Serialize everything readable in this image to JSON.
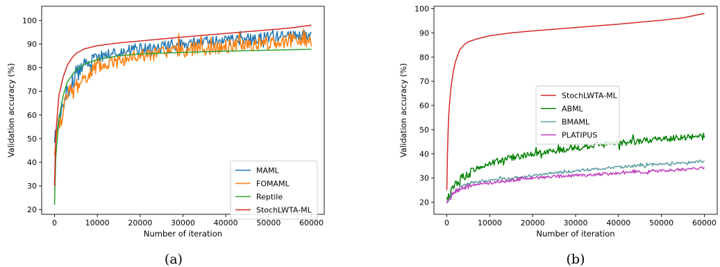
{
  "charts": [
    {
      "caption": "(a)",
      "chart_data": {
        "type": "line",
        "xlabel": "Number of iteration",
        "ylabel": "Validation accuracy (%)",
        "xlim": [
          -3000,
          63000
        ],
        "ylim": [
          18,
          106
        ],
        "xticks": [
          0,
          10000,
          20000,
          30000,
          40000,
          50000,
          60000
        ],
        "xtick_labels": [
          "0",
          "10000",
          "20000",
          "30000",
          "40000",
          "50000",
          "60000"
        ],
        "yticks": [
          20,
          30,
          40,
          50,
          60,
          70,
          80,
          90,
          100
        ],
        "ytick_labels": [
          "20",
          "30",
          "40",
          "50",
          "60",
          "70",
          "80",
          "90",
          "100"
        ],
        "legend_position": "lower-right",
        "series": [
          {
            "name": "MAML",
            "color": "#1f77b4",
            "noise": 2.6,
            "seed": 3,
            "x": [
              0,
              300,
              1000,
              2000,
              3000,
              5000,
              7000,
              10000,
              15000,
              20000,
              30000,
              40000,
              50000,
              55000,
              60000
            ],
            "y": [
              52,
              53,
              57,
              64,
              70,
              77,
              82,
              84.5,
              86.5,
              88,
              90,
              91.5,
              92.5,
              93.5,
              94
            ]
          },
          {
            "name": "FOMAML",
            "color": "#ff7f0e",
            "noise": 3.0,
            "seed": 7,
            "x": [
              0,
              300,
              1000,
              2000,
              3000,
              5000,
              7000,
              10000,
              15000,
              20000,
              30000,
              40000,
              50000,
              55000,
              60000
            ],
            "y": [
              44,
              48,
              56,
              63,
              67,
              72,
              76,
              80,
              83,
              85,
              87.5,
              89,
              90.5,
              91.5,
              92
            ]
          },
          {
            "name": "Reptile",
            "color": "#2ca02c",
            "noise": 0,
            "seed": 0,
            "x": [
              0,
              300,
              1000,
              2000,
              3000,
              5000,
              7000,
              10000,
              15000,
              20000,
              30000,
              40000,
              50000,
              60000
            ],
            "y": [
              22,
              42,
              58,
              68,
              74,
              79,
              81.5,
              83.5,
              85,
              85.8,
              86.5,
              87,
              87.4,
              87.8
            ]
          },
          {
            "name": "StochLWTA-ML",
            "color": "#d62728",
            "noise": 0,
            "seed": 0,
            "x": [
              0,
              300,
              1000,
              2000,
              3000,
              4000,
              5000,
              7000,
              10000,
              15000,
              20000,
              30000,
              40000,
              50000,
              55000,
              60000
            ],
            "y": [
              30,
              52,
              68,
              76,
              81,
              84,
              86,
              88,
              89.3,
              90.5,
              91.3,
              93,
              94.5,
              96,
              96.8,
              98
            ]
          }
        ]
      }
    },
    {
      "caption": "(b)",
      "chart_data": {
        "type": "line",
        "xlabel": "Number of iteration",
        "ylabel": "Validation accuracy (%)",
        "xlim": [
          -3000,
          63000
        ],
        "ylim": [
          15,
          101
        ],
        "xticks": [
          0,
          10000,
          20000,
          30000,
          40000,
          50000,
          60000
        ],
        "xtick_labels": [
          "0",
          "10000",
          "20000",
          "30000",
          "40000",
          "50000",
          "60000"
        ],
        "yticks": [
          20,
          30,
          40,
          50,
          60,
          70,
          80,
          90,
          100
        ],
        "ytick_labels": [
          "20",
          "30",
          "40",
          "50",
          "60",
          "70",
          "80",
          "90",
          "100"
        ],
        "legend_position": "center-left",
        "series": [
          {
            "name": "StochLWTA-ML",
            "color": "#d62728",
            "noise": 0,
            "seed": 0,
            "x": [
              0,
              200,
              500,
              1000,
              1500,
              2000,
              3000,
              4000,
              5000,
              7000,
              10000,
              15000,
              20000,
              30000,
              40000,
              50000,
              55000,
              60000
            ],
            "y": [
              25,
              45,
              58,
              68,
              74,
              78,
              83,
              85,
              86.3,
              87.5,
              88.8,
              90,
              90.8,
              92.2,
              93.6,
              95.2,
              96.2,
              98
            ]
          },
          {
            "name": "ABML",
            "color": "#008000",
            "noise": 1.3,
            "seed": 11,
            "x": [
              0,
              500,
              1000,
              2000,
              3000,
              5000,
              7000,
              10000,
              15000,
              20000,
              30000,
              40000,
              50000,
              60000
            ],
            "y": [
              21,
              22.5,
              24,
              27,
              29,
              32,
              34,
              36,
              38.5,
              40,
              42.5,
              44.5,
              46,
              47.5
            ]
          },
          {
            "name": "BMAML",
            "color": "#5f9ea0",
            "noise": 0.55,
            "seed": 19,
            "x": [
              0,
              500,
              1000,
              2000,
              3000,
              5000,
              7000,
              10000,
              15000,
              20000,
              30000,
              40000,
              50000,
              60000
            ],
            "y": [
              20,
              21.5,
              23,
              25,
              26,
              27.5,
              28.2,
              29,
              30,
              31,
              33,
              34.5,
              35.8,
              37
            ]
          },
          {
            "name": "PLATIPUS",
            "color": "#bf40bf",
            "noise": 0.65,
            "seed": 23,
            "x": [
              0,
              500,
              1000,
              2000,
              3000,
              5000,
              7000,
              10000,
              15000,
              20000,
              30000,
              40000,
              50000,
              60000
            ],
            "y": [
              19,
              21,
              22.5,
              24.5,
              25.5,
              26.5,
              27.3,
              28,
              29,
              30,
              31,
              32,
              33,
              34
            ]
          }
        ]
      }
    }
  ]
}
